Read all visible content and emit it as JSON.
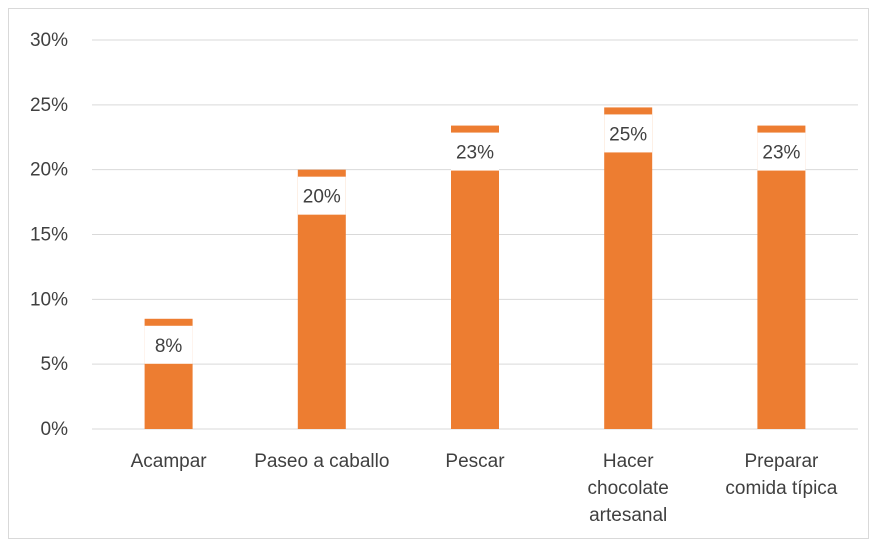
{
  "chart_data": {
    "type": "bar",
    "title": "",
    "xlabel": "",
    "ylabel": "",
    "categories": [
      [
        "Acampar"
      ],
      [
        "Paseo a caballo"
      ],
      [
        "Pescar"
      ],
      [
        "Hacer",
        "chocolate",
        "artesanal"
      ],
      [
        "Preparar",
        "comida típica"
      ]
    ],
    "values": [
      8.5,
      20,
      23.4,
      24.8,
      23.4
    ],
    "data_labels": [
      "8%",
      "20%",
      "23%",
      "25%",
      "23%"
    ],
    "ylim": [
      0,
      30
    ],
    "y_ticks": [
      "0%",
      "5%",
      "10%",
      "15%",
      "20%",
      "25%",
      "30%"
    ],
    "grid": true,
    "legend": "none",
    "colors": {
      "bar": "#ED7D31",
      "grid": "#D9D9D9",
      "text": "#404040",
      "border": "#D9D9D9"
    }
  }
}
